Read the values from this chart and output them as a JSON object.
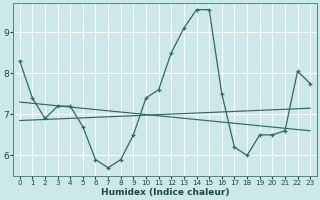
{
  "xlabel": "Humidex (Indice chaleur)",
  "ylabel": "",
  "bg_color": "#cce8ea",
  "grid_color": "#ffffff",
  "line_color": "#2e6b5e",
  "xlim": [
    -0.5,
    23.5
  ],
  "ylim": [
    5.5,
    9.7
  ],
  "yticks": [
    6,
    7,
    8,
    9
  ],
  "xticks": [
    0,
    1,
    2,
    3,
    4,
    5,
    6,
    7,
    8,
    9,
    10,
    11,
    12,
    13,
    14,
    15,
    16,
    17,
    18,
    19,
    20,
    21,
    22,
    23
  ],
  "main_x": [
    0,
    1,
    2,
    3,
    4,
    5,
    6,
    7,
    8,
    9,
    10,
    11,
    12,
    13,
    14,
    15,
    16,
    17,
    18,
    19,
    20,
    21,
    22,
    23
  ],
  "main_y": [
    8.3,
    7.4,
    6.9,
    7.2,
    7.2,
    6.7,
    5.9,
    5.7,
    5.9,
    6.5,
    7.4,
    7.6,
    8.5,
    9.1,
    9.55,
    9.55,
    7.5,
    6.2,
    6.0,
    6.5,
    6.5,
    6.6,
    8.05,
    7.75
  ],
  "trend1_x": [
    0,
    23
  ],
  "trend1_y": [
    7.3,
    6.6
  ],
  "trend2_x": [
    0,
    23
  ],
  "trend2_y": [
    6.85,
    7.15
  ]
}
